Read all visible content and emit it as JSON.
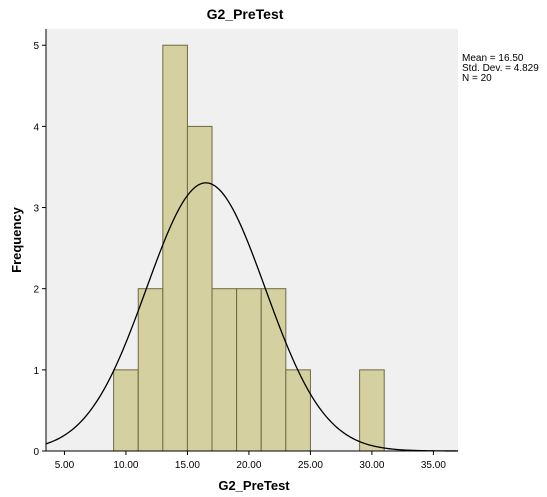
{
  "chart_data": {
    "type": "bar",
    "title": "G2_PreTest",
    "xlabel": "G2_PreTest",
    "ylabel": "Frequency",
    "xlim": [
      3.5,
      37.0
    ],
    "ylim": [
      0,
      5.2
    ],
    "x_ticks": [
      5,
      10,
      15,
      20,
      25,
      30,
      35
    ],
    "x_tick_labels": [
      "5.00",
      "10.00",
      "15.00",
      "20.00",
      "25.00",
      "30.00",
      "35.00"
    ],
    "y_ticks": [
      0,
      1,
      2,
      3,
      4,
      5
    ],
    "y_tick_labels": [
      "0",
      "1",
      "2",
      "3",
      "4",
      "5"
    ],
    "bin_width": 2,
    "bins": [
      {
        "start": 9,
        "end": 11,
        "count": 1
      },
      {
        "start": 11,
        "end": 13,
        "count": 2
      },
      {
        "start": 13,
        "end": 15,
        "count": 5
      },
      {
        "start": 15,
        "end": 17,
        "count": 4
      },
      {
        "start": 17,
        "end": 19,
        "count": 2
      },
      {
        "start": 19,
        "end": 21,
        "count": 2
      },
      {
        "start": 21,
        "end": 23,
        "count": 2
      },
      {
        "start": 23,
        "end": 25,
        "count": 1
      },
      {
        "start": 29,
        "end": 31,
        "count": 1
      }
    ],
    "normal_curve": {
      "mean": 16.5,
      "std": 4.829,
      "n": 20
    },
    "stats": [
      "Mean = 16.50",
      "Std. Dev. = 4.829",
      "N = 20"
    ],
    "colors": {
      "bar_fill": "#d4d0a0",
      "bar_stroke": "#6f6a40",
      "plot_background": "#f0f0f0",
      "curve": "#000000"
    },
    "grid": false,
    "legend_position": "top-right"
  }
}
